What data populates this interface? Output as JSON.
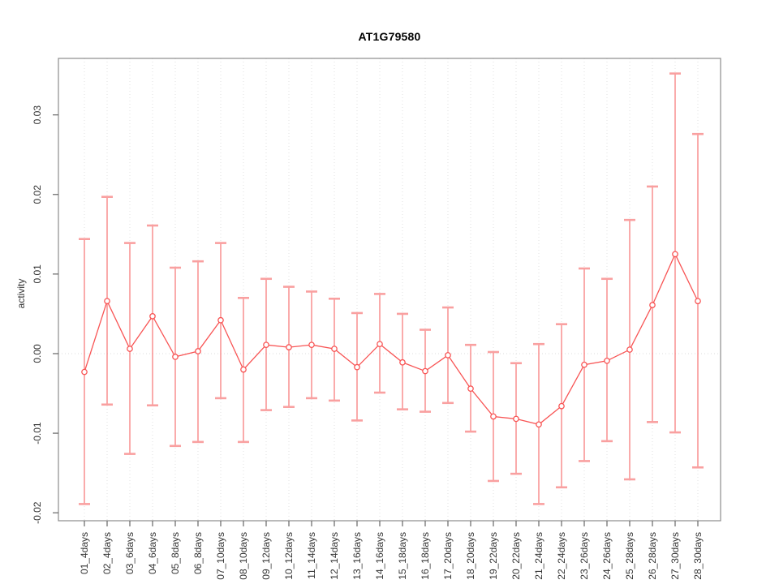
{
  "chart": {
    "title": "AT1G79580",
    "ylabel": "activity"
  },
  "chart_data": {
    "type": "line",
    "title": "AT1G79580",
    "xlabel": "",
    "ylabel": "activity",
    "legend": "none",
    "grid": "vertical dotted gridline per category; dotted horizontal line at y=0",
    "ylim": [
      -0.021,
      0.0371
    ],
    "yticks": [
      -0.02,
      -0.01,
      0,
      0.01,
      0.02,
      0.03
    ],
    "ytick_labels": [
      "-0.02",
      "-0.01",
      "0.00",
      "0.01",
      "0.02",
      "0.03"
    ],
    "categories": [
      "01_4days",
      "02_4days",
      "03_6days",
      "04_6days",
      "05_8days",
      "06_8days",
      "07_10days",
      "08_10days",
      "09_12days",
      "10_12days",
      "11_14days",
      "12_14days",
      "13_16days",
      "14_16days",
      "15_18days",
      "16_18days",
      "17_20days",
      "18_20days",
      "19_22days",
      "20_22days",
      "21_24days",
      "22_24days",
      "23_26days",
      "24_26days",
      "25_28days",
      "26_28days",
      "27_30days",
      "28_30days"
    ],
    "series": [
      {
        "name": "activity",
        "marker": "open-circle",
        "values": [
          -0.0023,
          0.0066,
          0.0006,
          0.0047,
          -0.0004,
          0.0003,
          0.0042,
          -0.002,
          0.0011,
          0.0008,
          0.0011,
          0.0006,
          -0.0017,
          0.0012,
          -0.0011,
          -0.0022,
          -0.0002,
          -0.0044,
          -0.0079,
          -0.0082,
          -0.0089,
          -0.0066,
          -0.0014,
          -0.0009,
          0.0005,
          0.0061,
          0.0125,
          0.0066
        ],
        "upper": [
          0.0144,
          0.0197,
          0.0139,
          0.0161,
          0.0108,
          0.0116,
          0.0139,
          0.007,
          0.0094,
          0.0084,
          0.0078,
          0.0069,
          0.0051,
          0.0075,
          0.005,
          0.003,
          0.0058,
          0.0011,
          0.0002,
          -0.0012,
          0.0012,
          0.0037,
          0.0107,
          0.0094,
          0.0168,
          0.021,
          0.0352,
          0.0276
        ],
        "lower": [
          -0.0189,
          -0.0064,
          -0.0126,
          -0.0065,
          -0.0116,
          -0.0111,
          -0.0056,
          -0.0111,
          -0.0071,
          -0.0067,
          -0.0056,
          -0.0059,
          -0.0084,
          -0.0049,
          -0.007,
          -0.0073,
          -0.0062,
          -0.0098,
          -0.016,
          -0.0151,
          -0.0189,
          -0.0168,
          -0.0135,
          -0.011,
          -0.0158,
          -0.0086,
          -0.0099,
          -0.0143
        ]
      }
    ],
    "colors": {
      "line": "#f85454",
      "error_bar": "#f87e7e",
      "error_cap": "#f9a0a0",
      "marker_stroke": "#f85454",
      "marker_fill": "#ffffff",
      "gridline": "#e2e2e2",
      "zero_line": "#dddddd",
      "frame": "#8c8c8c",
      "tick": "#666666",
      "text": "#333333"
    }
  }
}
